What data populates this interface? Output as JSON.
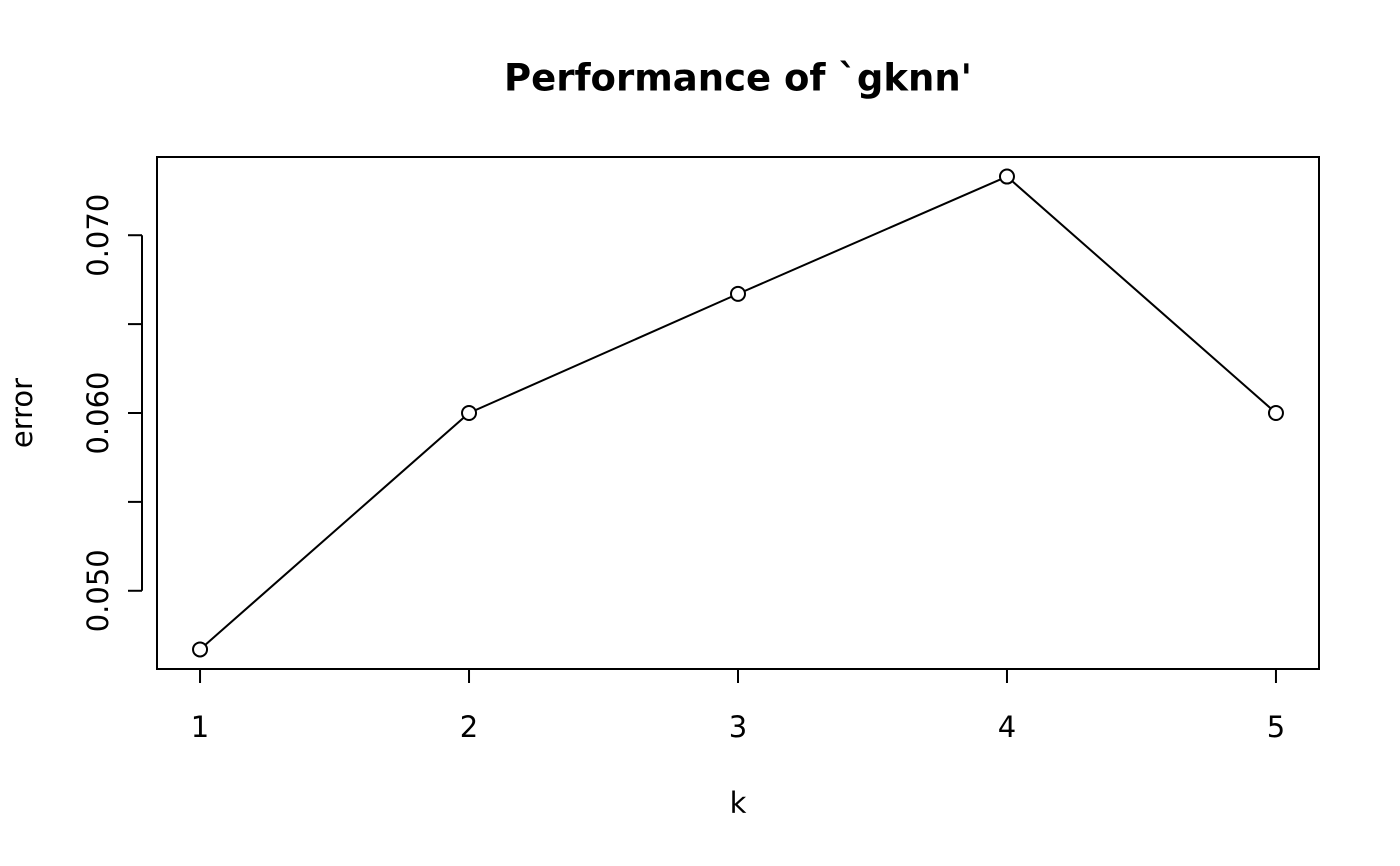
{
  "chart_data": {
    "type": "line",
    "title": "Performance of `gknn'",
    "x_label": "k",
    "y_label": "error",
    "x": [
      1,
      2,
      3,
      4,
      5
    ],
    "values": [
      0.0467,
      0.06,
      0.0667,
      0.0733,
      0.06
    ],
    "color": "#000000",
    "markers": true,
    "xlim": [
      0.84,
      5.16
    ],
    "ylim": [
      0.0456,
      0.0744
    ],
    "xticks": [
      1,
      2,
      3,
      4,
      5
    ],
    "yticks": [
      {
        "value": 0.05,
        "label": "0.050"
      },
      {
        "value": 0.055,
        "label": null
      },
      {
        "value": 0.06,
        "label": "0.060"
      },
      {
        "value": 0.065,
        "label": null
      },
      {
        "value": 0.07,
        "label": "0.070"
      }
    ],
    "grid": false
  }
}
